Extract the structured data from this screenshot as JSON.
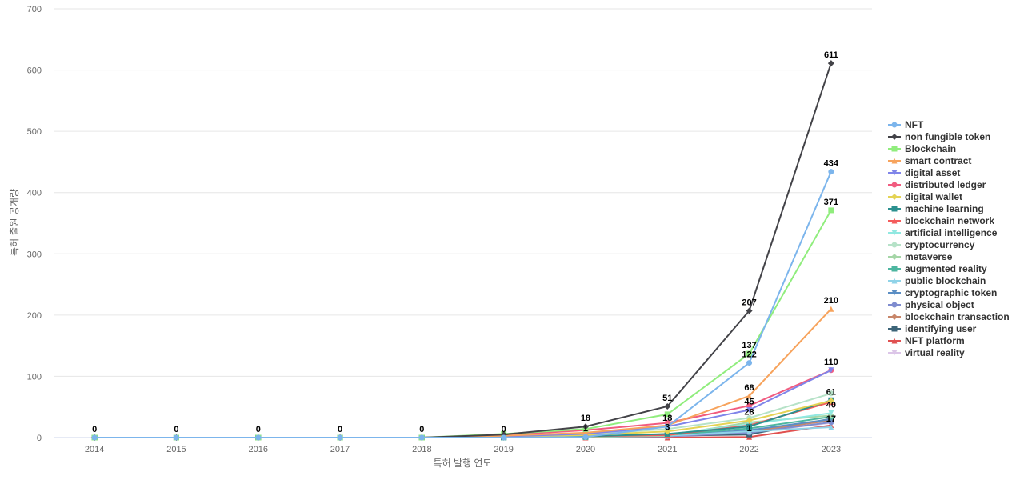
{
  "chart_data": {
    "type": "line",
    "title": "",
    "xlabel": "특허 발행 연도",
    "ylabel": "특허 출원 공개량",
    "ylim": [
      0,
      700
    ],
    "yticks": [
      0,
      100,
      200,
      300,
      400,
      500,
      600,
      700
    ],
    "grid": true,
    "legend_position": "right",
    "categories": [
      "2014",
      "2015",
      "2016",
      "2017",
      "2018",
      "2019",
      "2020",
      "2021",
      "2022",
      "2023"
    ],
    "series": [
      {
        "name": "NFT",
        "color": "#7cb5ec",
        "marker": "circle",
        "values": [
          0,
          0,
          0,
          0,
          0,
          0,
          1,
          18,
          122,
          434
        ]
      },
      {
        "name": "non fungible token",
        "color": "#434348",
        "marker": "diamond",
        "values": [
          0,
          0,
          0,
          0,
          0,
          5,
          18,
          51,
          207,
          611
        ]
      },
      {
        "name": "Blockchain",
        "color": "#90ed7d",
        "marker": "square",
        "values": [
          0,
          0,
          0,
          0,
          0,
          6,
          14,
          38,
          137,
          371
        ]
      },
      {
        "name": "smart contract",
        "color": "#f7a35c",
        "marker": "triangle",
        "values": [
          0,
          0,
          0,
          0,
          0,
          3,
          8,
          20,
          68,
          210
        ]
      },
      {
        "name": "digital asset",
        "color": "#8085e9",
        "marker": "triangle-down",
        "values": [
          0,
          0,
          0,
          0,
          0,
          2,
          6,
          18,
          45,
          110
        ]
      },
      {
        "name": "distributed ledger",
        "color": "#f15c80",
        "marker": "circle",
        "values": [
          0,
          0,
          0,
          0,
          0,
          4,
          12,
          24,
          52,
          110
        ]
      },
      {
        "name": "digital wallet",
        "color": "#e4d354",
        "marker": "diamond",
        "values": [
          0,
          0,
          0,
          0,
          0,
          1,
          4,
          10,
          28,
          60
        ]
      },
      {
        "name": "machine learning",
        "color": "#2b908f",
        "marker": "square",
        "values": [
          0,
          0,
          0,
          0,
          0,
          1,
          2,
          6,
          18,
          61
        ]
      },
      {
        "name": "blockchain network",
        "color": "#f45b5b",
        "marker": "triangle",
        "values": [
          0,
          0,
          0,
          0,
          0,
          1,
          2,
          4,
          20,
          58
        ]
      },
      {
        "name": "artificial intelligence",
        "color": "#91e8e1",
        "marker": "triangle-down",
        "values": [
          0,
          0,
          0,
          0,
          0,
          1,
          2,
          5,
          22,
          40
        ]
      },
      {
        "name": "cryptocurrency",
        "color": "#b6e2c8",
        "marker": "circle",
        "values": [
          0,
          0,
          0,
          0,
          0,
          2,
          5,
          14,
          32,
          72
        ]
      },
      {
        "name": "metaverse",
        "color": "#a5d6a7",
        "marker": "diamond",
        "values": [
          0,
          0,
          0,
          0,
          0,
          0,
          1,
          3,
          25,
          36
        ]
      },
      {
        "name": "augmented reality",
        "color": "#4db6a0",
        "marker": "square",
        "values": [
          0,
          0,
          0,
          0,
          0,
          0,
          1,
          4,
          15,
          34
        ]
      },
      {
        "name": "public blockchain",
        "color": "#8fd3e8",
        "marker": "triangle",
        "values": [
          0,
          0,
          0,
          0,
          0,
          0,
          1,
          3,
          10,
          17
        ]
      },
      {
        "name": "cryptographic token",
        "color": "#5b8ec4",
        "marker": "triangle-down",
        "values": [
          0,
          0,
          0,
          0,
          0,
          0,
          1,
          3,
          12,
          30
        ]
      },
      {
        "name": "physical object",
        "color": "#7f8ccf",
        "marker": "circle",
        "values": [
          0,
          0,
          0,
          0,
          0,
          0,
          1,
          2,
          8,
          25
        ]
      },
      {
        "name": "blockchain transaction",
        "color": "#c8866a",
        "marker": "diamond",
        "values": [
          0,
          0,
          0,
          0,
          0,
          0,
          1,
          2,
          10,
          28
        ]
      },
      {
        "name": "identifying user",
        "color": "#3c6478",
        "marker": "square",
        "values": [
          0,
          0,
          0,
          0,
          0,
          0,
          1,
          3,
          5,
          31
        ]
      },
      {
        "name": "NFT platform",
        "color": "#e05050",
        "marker": "triangle",
        "values": [
          0,
          0,
          0,
          0,
          0,
          0,
          0,
          0,
          1,
          20
        ]
      },
      {
        "name": "virtual reality",
        "color": "#dcc6e8",
        "marker": "triangle-down",
        "values": [
          0,
          0,
          0,
          0,
          0,
          0,
          1,
          1,
          8,
          24
        ]
      }
    ],
    "data_labels": [
      {
        "x": "2014",
        "y": 0,
        "text": "0"
      },
      {
        "x": "2015",
        "y": 0,
        "text": "0"
      },
      {
        "x": "2016",
        "y": 0,
        "text": "0"
      },
      {
        "x": "2017",
        "y": 0,
        "text": "0"
      },
      {
        "x": "2018",
        "y": 0,
        "text": "0"
      },
      {
        "x": "2019",
        "y": 0,
        "text": "0"
      },
      {
        "x": "2020",
        "y": 18,
        "text": "18"
      },
      {
        "x": "2020",
        "y": 1,
        "text": "1"
      },
      {
        "x": "2021",
        "y": 51,
        "text": "51"
      },
      {
        "x": "2021",
        "y": 18,
        "text": "18"
      },
      {
        "x": "2021",
        "y": 3,
        "text": "3"
      },
      {
        "x": "2022",
        "y": 207,
        "text": "207"
      },
      {
        "x": "2022",
        "y": 137,
        "text": "137"
      },
      {
        "x": "2022",
        "y": 122,
        "text": "122"
      },
      {
        "x": "2022",
        "y": 68,
        "text": "68"
      },
      {
        "x": "2022",
        "y": 45,
        "text": "45"
      },
      {
        "x": "2022",
        "y": 28,
        "text": "28"
      },
      {
        "x": "2022",
        "y": 1,
        "text": "1"
      },
      {
        "x": "2023",
        "y": 611,
        "text": "611"
      },
      {
        "x": "2023",
        "y": 434,
        "text": "434"
      },
      {
        "x": "2023",
        "y": 371,
        "text": "371"
      },
      {
        "x": "2023",
        "y": 210,
        "text": "210"
      },
      {
        "x": "2023",
        "y": 110,
        "text": "110"
      },
      {
        "x": "2023",
        "y": 61,
        "text": "61"
      },
      {
        "x": "2023",
        "y": 40,
        "text": "40"
      },
      {
        "x": "2023",
        "y": 17,
        "text": "17"
      }
    ]
  }
}
